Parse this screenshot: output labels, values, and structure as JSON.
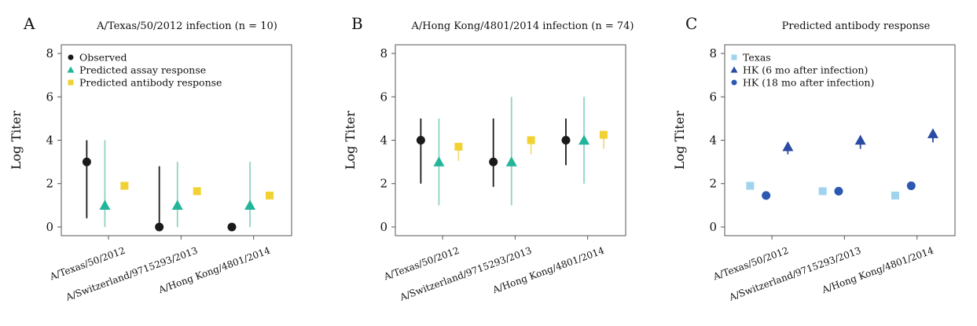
{
  "colors": {
    "observed": "#1a1a1a",
    "assay": "#22b59a",
    "assay_bar": "#8fd3c6",
    "antibody": "#f2d233",
    "antibody_bar": "#f2dc7a",
    "texas": "#9fd3ee",
    "hk6": "#2b4ba2",
    "hk18": "#2b58b0",
    "hk_bar": "#2b4ba2"
  },
  "chart_data": [
    {
      "type": "scatter",
      "panel": "A",
      "title": "A/Texas/50/2012 infection (n = 10)",
      "ylabel": "Log Titer",
      "ylim": [
        -0.4,
        8.4
      ],
      "yticks": [
        "0",
        "2",
        "4",
        "6",
        "8"
      ],
      "categories": [
        "A/Texas/50/2012",
        "A/Switzerland/9715293/2013",
        "A/Hong Kong/4801/2014"
      ],
      "legend": [
        "Observed",
        "Predicted assay response",
        "Predicted antibody response"
      ],
      "legend_position": "top-left",
      "series": [
        {
          "name": "Observed",
          "marker": "circle",
          "color_key": "observed",
          "bar_key": "observed",
          "offset": -0.3,
          "values": [
            3,
            0,
            0
          ],
          "lower": [
            0.4,
            0,
            0
          ],
          "upper": [
            4,
            2.8,
            0
          ]
        },
        {
          "name": "Predicted assay response",
          "marker": "triangle",
          "color_key": "assay",
          "bar_key": "assay_bar",
          "offset": -0.05,
          "values": [
            1,
            1,
            1
          ],
          "lower": [
            0,
            0,
            0
          ],
          "upper": [
            4,
            3,
            3
          ]
        },
        {
          "name": "Predicted antibody response",
          "marker": "square",
          "color_key": "antibody",
          "bar_key": "antibody_bar",
          "offset": 0.22,
          "values": [
            1.9,
            1.65,
            1.45
          ],
          "lower": [
            1.9,
            1.65,
            1.45
          ],
          "upper": [
            1.9,
            1.65,
            1.45
          ]
        }
      ]
    },
    {
      "type": "scatter",
      "panel": "B",
      "title": "A/Hong Kong/4801/2014 infection (n = 74)",
      "ylabel": "Log Titer",
      "ylim": [
        -0.4,
        8.4
      ],
      "yticks": [
        "0",
        "2",
        "4",
        "6",
        "8"
      ],
      "categories": [
        "A/Texas/50/2012",
        "A/Switzerland/9715293/2013",
        "A/Hong Kong/4801/2014"
      ],
      "legend": [],
      "series": [
        {
          "name": "Observed",
          "marker": "circle",
          "color_key": "observed",
          "bar_key": "observed",
          "offset": -0.3,
          "values": [
            4,
            3,
            4
          ],
          "lower": [
            2,
            1.85,
            2.85
          ],
          "upper": [
            5,
            5,
            5
          ]
        },
        {
          "name": "Predicted assay response",
          "marker": "triangle",
          "color_key": "assay",
          "bar_key": "assay_bar",
          "offset": -0.05,
          "values": [
            3,
            3,
            4
          ],
          "lower": [
            1,
            1,
            2
          ],
          "upper": [
            5,
            6,
            6
          ]
        },
        {
          "name": "Predicted antibody response",
          "marker": "square",
          "color_key": "antibody",
          "bar_key": "antibody_bar",
          "offset": 0.22,
          "values": [
            3.7,
            4,
            4.25
          ],
          "lower": [
            3.05,
            3.35,
            3.6
          ],
          "upper": [
            3.7,
            4,
            4.25
          ]
        }
      ]
    },
    {
      "type": "scatter",
      "panel": "C",
      "title": "Predicted antibody response",
      "ylabel": "Log Titer",
      "ylim": [
        -0.4,
        8.4
      ],
      "yticks": [
        "0",
        "2",
        "4",
        "6",
        "8"
      ],
      "categories": [
        "A/Texas/50/2012",
        "A/Switzerland/9715293/2013",
        "A/Hong Kong/4801/2014"
      ],
      "legend": [
        "Texas",
        "HK (6 mo after infection)",
        "HK (18 mo after infection)"
      ],
      "legend_position": "top-left",
      "series": [
        {
          "name": "Texas",
          "marker": "square",
          "color_key": "texas",
          "bar_key": "texas",
          "offset": -0.3,
          "values": [
            1.9,
            1.65,
            1.45
          ],
          "lower": [
            1.9,
            1.65,
            1.45
          ],
          "upper": [
            1.9,
            1.65,
            1.45
          ]
        },
        {
          "name": "HK (18 mo after infection)",
          "marker": "circle",
          "color_key": "hk18",
          "bar_key": "hk18",
          "offset": -0.08,
          "values": [
            1.45,
            1.65,
            1.9
          ],
          "lower": [
            1.45,
            1.65,
            1.9
          ],
          "upper": [
            1.45,
            1.65,
            1.9
          ]
        },
        {
          "name": "HK (6 mo after infection)",
          "marker": "triangle",
          "color_key": "hk6",
          "bar_key": "hk_bar",
          "offset": 0.22,
          "values": [
            3.7,
            4,
            4.3
          ],
          "lower": [
            3.35,
            3.6,
            3.9
          ],
          "upper": [
            3.7,
            4,
            4.3
          ]
        }
      ]
    }
  ]
}
